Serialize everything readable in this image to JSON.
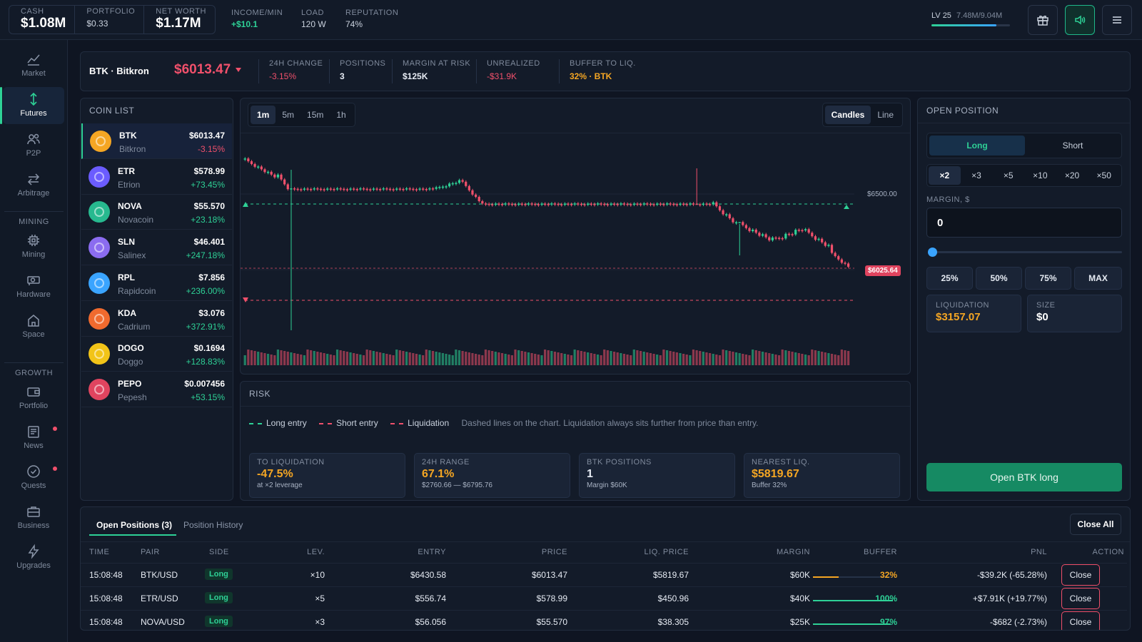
{
  "topbar": {
    "cash_label": "CASH",
    "cash_value": "$1.08M",
    "portfolio_label": "PORTFOLIO",
    "portfolio_value": "$0.33",
    "networth_label": "NET WORTH",
    "networth_value": "$1.17M",
    "income_label": "INCOME/MIN",
    "income_value": "+$10.1",
    "load_label": "LOAD",
    "load_value": "120 W",
    "rep_label": "REPUTATION",
    "rep_value": "74%",
    "level_label": "LV 25",
    "level_progress": "7.48M/9.04M",
    "level_fraction": 0.83
  },
  "nav": {
    "market": "Market",
    "futures": "Futures",
    "p2p": "P2P",
    "arbitrage": "Arbitrage",
    "mining_section": "MINING",
    "mining": "Mining",
    "hardware": "Hardware",
    "space": "Space",
    "growth_section": "GROWTH",
    "portfolio": "Portfolio",
    "news": "News",
    "quests": "Quests",
    "business": "Business",
    "upgrades": "Upgrades"
  },
  "header": {
    "pair": "BTK · Bitkron",
    "price": "$6013.47",
    "change_label": "24H CHANGE",
    "change_value": "-3.15%",
    "positions_label": "POSITIONS",
    "positions_value": "3",
    "margin_label": "MARGIN AT RISK",
    "margin_value": "$125K",
    "unrealized_label": "UNREALIZED",
    "unrealized_value": "-$31.9K",
    "buffer_label": "BUFFER TO LIQ.",
    "buffer_value": "32% · BTK"
  },
  "coins": {
    "title": "COIN LIST",
    "items": [
      {
        "sym": "BTK",
        "name": "Bitkron",
        "price": "$6013.47",
        "chg": "-3.15%",
        "color": "#f5a623"
      },
      {
        "sym": "ETR",
        "name": "Etrion",
        "price": "$578.99",
        "chg": "+73.45%",
        "color": "#6b5cff"
      },
      {
        "sym": "NOVA",
        "name": "Novacoin",
        "price": "$55.570",
        "chg": "+23.18%",
        "color": "#27b98f"
      },
      {
        "sym": "SLN",
        "name": "Salinex",
        "price": "$46.401",
        "chg": "+247.18%",
        "color": "#8b6cf0"
      },
      {
        "sym": "RPL",
        "name": "Rapidcoin",
        "price": "$7.856",
        "chg": "+236.00%",
        "color": "#3aa4ff"
      },
      {
        "sym": "KDA",
        "name": "Cadrium",
        "price": "$3.076",
        "chg": "+372.91%",
        "color": "#f06a2e"
      },
      {
        "sym": "DOGO",
        "name": "Doggo",
        "price": "$0.1694",
        "chg": "+128.83%",
        "color": "#f2c418"
      },
      {
        "sym": "PEPO",
        "name": "Pepesh",
        "price": "$0.007456",
        "chg": "+53.15%",
        "color": "#e0445f"
      }
    ]
  },
  "chart": {
    "timeframes": [
      "1m",
      "5m",
      "15m",
      "1h"
    ],
    "modes": [
      "Candles",
      "Line"
    ],
    "level_label": "$6500.00",
    "current_label": "$6025.64"
  },
  "chart_data": {
    "type": "candlestick",
    "title": "",
    "reference_lines": [
      {
        "name": "current price",
        "value": 6025.64
      },
      {
        "name": "level",
        "value": 6500.0
      }
    ],
    "colors": {
      "up": "#2ed196",
      "down": "#f0506b"
    }
  },
  "risk": {
    "title": "RISK",
    "legend_long": "Long entry",
    "legend_short": "Short entry",
    "legend_liq": "Liquidation",
    "note": "Dashed lines on the chart. Liquidation always sits further from price than entry.",
    "cards": [
      {
        "label": "TO LIQUIDATION",
        "value": "-47.5%",
        "sub": "at ×2 leverage"
      },
      {
        "label": "24H RANGE",
        "value": "67.1%",
        "sub": "$2760.66 — $6795.76"
      },
      {
        "label": "BTK POSITIONS",
        "value": "1",
        "sub": "Margin $60K"
      },
      {
        "label": "NEAREST LIQ.",
        "value": "$5819.67",
        "sub": "Buffer 32%"
      }
    ]
  },
  "order": {
    "title": "OPEN POSITION",
    "long": "Long",
    "short": "Short",
    "leverages": [
      "×2",
      "×3",
      "×5",
      "×10",
      "×20",
      "×50"
    ],
    "margin_label": "MARGIN, $",
    "margin_value": "0",
    "slider_fraction": 0.0,
    "pcts": [
      "25%",
      "50%",
      "75%",
      "MAX"
    ],
    "liq_label": "LIQUIDATION",
    "liq_value": "$3157.07",
    "size_label": "SIZE",
    "size_value": "$0",
    "submit": "Open BTK long"
  },
  "positions": {
    "tab_open": "Open Positions (3)",
    "tab_history": "Position History",
    "close_all": "Close All",
    "headers": [
      "TIME",
      "PAIR",
      "SIDE",
      "LEV.",
      "ENTRY",
      "PRICE",
      "LIQ. PRICE",
      "MARGIN",
      "BUFFER",
      "PNL",
      "ACTION"
    ],
    "rows": [
      {
        "time": "15:08:48",
        "pair": "BTK/USD",
        "side": "Long",
        "lev": "×10",
        "entry": "$6430.58",
        "price": "$6013.47",
        "liq": "$5819.67",
        "margin": "$60K",
        "buffer": "32%",
        "buffer_fraction": 0.32,
        "pnl": "-$39.2K (-65.28%)",
        "action": "Close"
      },
      {
        "time": "15:08:48",
        "pair": "ETR/USD",
        "side": "Long",
        "lev": "×5",
        "entry": "$556.74",
        "price": "$578.99",
        "liq": "$450.96",
        "margin": "$40K",
        "buffer": "100%",
        "buffer_fraction": 1.0,
        "pnl": "+$7.91K (+19.77%)",
        "action": "Close"
      },
      {
        "time": "15:08:48",
        "pair": "NOVA/USD",
        "side": "Long",
        "lev": "×3",
        "entry": "$56.056",
        "price": "$55.570",
        "liq": "$38.305",
        "margin": "$25K",
        "buffer": "97%",
        "buffer_fraction": 0.97,
        "pnl": "-$682 (-2.73%)",
        "action": "Close"
      }
    ]
  }
}
